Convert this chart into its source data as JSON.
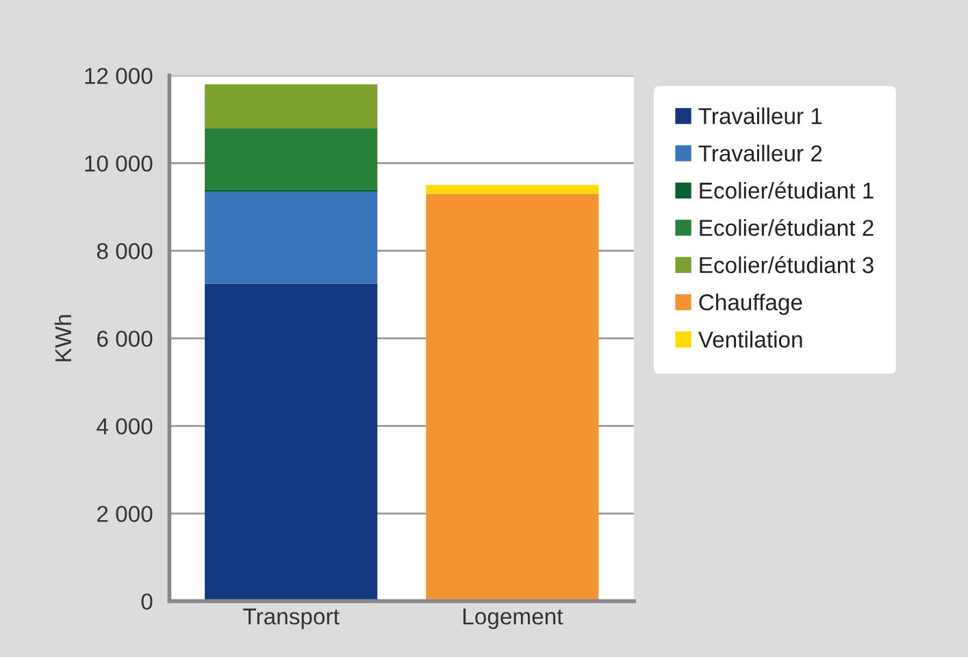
{
  "chart_data": {
    "type": "bar",
    "stacked": true,
    "ylabel": "KWh",
    "categories": [
      "Transport",
      "Logement"
    ],
    "series": [
      {
        "name": "Travailleur 1",
        "color": "#14387f",
        "values": [
          7250,
          null
        ]
      },
      {
        "name": "Travailleur 2",
        "color": "#3875bb",
        "values": [
          2100,
          null
        ]
      },
      {
        "name": "Ecolier/étudiant 1",
        "color": "#0b6130",
        "values": [
          50,
          null
        ]
      },
      {
        "name": "Ecolier/étudiant 2",
        "color": "#268139",
        "values": [
          1400,
          null
        ]
      },
      {
        "name": "Ecolier/étudiant 3",
        "color": "#7ea02f",
        "values": [
          1000,
          null
        ]
      },
      {
        "name": "Chauffage",
        "color": "#f39331",
        "values": [
          null,
          9300
        ]
      },
      {
        "name": "Ventilation",
        "color": "#ffdb00",
        "values": [
          null,
          200
        ]
      }
    ],
    "ylim": [
      0,
      12000
    ],
    "yticks": [
      {
        "value": 0,
        "label": "0"
      },
      {
        "value": 2000,
        "label": "2 000"
      },
      {
        "value": 4000,
        "label": "4 000"
      },
      {
        "value": 6000,
        "label": "6 000"
      },
      {
        "value": 8000,
        "label": "8 000"
      },
      {
        "value": 10000,
        "label": "10 000"
      },
      {
        "value": 12000,
        "label": "12 000"
      }
    ],
    "grid": "y",
    "legend": "right"
  }
}
